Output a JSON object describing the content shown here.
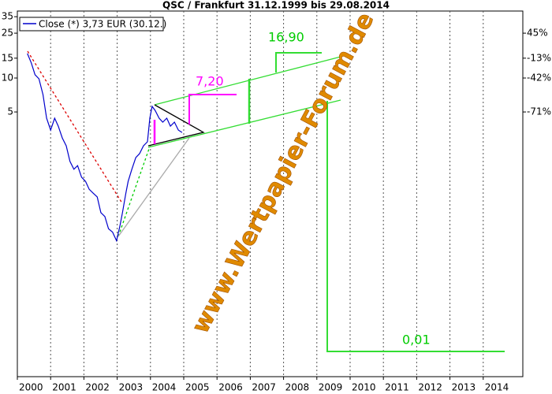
{
  "chart_data": {
    "type": "line",
    "title": "QSC / Frankfurt 31.12.1999 bis 29.08.2014",
    "log_scale": true,
    "grid": true,
    "legend": "top-left",
    "xlim": [
      2000,
      2015.19
    ],
    "xticks": [
      2000,
      2001,
      2002,
      2003,
      2004,
      2005,
      2006,
      2007,
      2008,
      2009,
      2010,
      2011,
      2012,
      2013,
      2014
    ],
    "ylim": [
      0.0224,
      39.3
    ],
    "yticks": [
      35,
      25,
      15,
      10,
      5
    ],
    "y2lim": [
      0.0224,
      39.3
    ],
    "y2ticks": [
      {
        "value": 25,
        "label": "45%"
      },
      {
        "value": 15,
        "label": "-13%"
      },
      {
        "value": 10,
        "label": "-42%"
      },
      {
        "value": 5,
        "label": "-71%"
      }
    ],
    "x": [
      2000.3,
      2000.42,
      2000.53,
      2000.65,
      2000.77,
      2000.88,
      2001.0,
      2001.12,
      2001.23,
      2001.35,
      2001.47,
      2001.58,
      2001.7,
      2001.81,
      2001.93,
      2002.05,
      2002.16,
      2002.28,
      2002.4,
      2002.51,
      2002.63,
      2002.74,
      2002.86,
      2002.98,
      2003.09,
      2003.16,
      2003.26,
      2003.33,
      2003.44,
      2003.56,
      2003.67,
      2003.79,
      2003.91,
      2003.98,
      2004.05,
      2004.14,
      2004.26,
      2004.37,
      2004.49,
      2004.6,
      2004.72,
      2004.84,
      2004.95
    ],
    "series": [
      {
        "name": "Close (*) 3,73 EUR (30.12.)",
        "color": "#0000cc",
        "values": [
          16.5,
          13.6,
          10.7,
          9.84,
          7.13,
          4.4,
          3.45,
          4.4,
          3.74,
          2.94,
          2.5,
          1.82,
          1.55,
          1.67,
          1.32,
          1.21,
          1.03,
          0.95,
          0.88,
          0.64,
          0.59,
          0.46,
          0.43,
          0.36,
          0.5,
          0.64,
          0.95,
          1.21,
          1.55,
          1.97,
          2.13,
          2.5,
          2.72,
          4.4,
          5.6,
          5.16,
          4.4,
          4.06,
          4.4,
          3.74,
          4.06,
          3.45,
          3.29
        ]
      }
    ],
    "annotations": [
      "7,20",
      "16,90",
      "0,01"
    ],
    "watermark": "www.Wertpapier-Forum.de"
  }
}
